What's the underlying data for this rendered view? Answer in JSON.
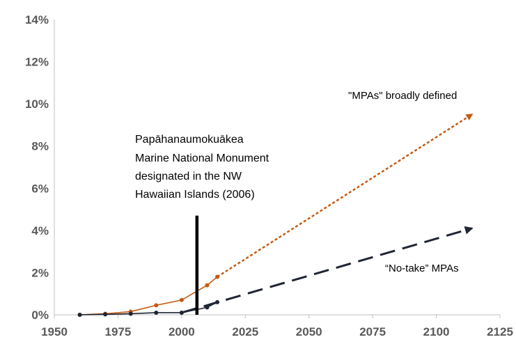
{
  "chart_data": {
    "type": "line",
    "title": "",
    "xlabel": "",
    "ylabel": "",
    "xlim": [
      1950,
      2125
    ],
    "ylim": [
      0,
      14
    ],
    "x_ticks": [
      1950,
      1975,
      2000,
      2025,
      2050,
      2075,
      2100,
      2125
    ],
    "x_tick_labels": [
      "1950",
      "1975",
      "2000",
      "2025",
      "2050",
      "2075",
      "2100",
      "2125"
    ],
    "y_ticks": [
      0,
      2,
      4,
      6,
      8,
      10,
      12,
      14
    ],
    "y_tick_labels": [
      "0%",
      "2%",
      "4%",
      "6%",
      "8%",
      "10%",
      "12%",
      "14%"
    ],
    "grid": false,
    "series": [
      {
        "name": "\"MPAs\" broadly defined",
        "color": "#C55A11",
        "observed": [
          [
            1960,
            0.0
          ],
          [
            1970,
            0.05
          ],
          [
            1980,
            0.15
          ],
          [
            1990,
            0.45
          ],
          [
            2000,
            0.7
          ],
          [
            2010,
            1.4
          ],
          [
            2014,
            1.8
          ]
        ],
        "projection": [
          [
            2014,
            1.8
          ],
          [
            2114,
            9.5
          ]
        ]
      },
      {
        "name": "“No-take” MPAs",
        "color": "#1F2533",
        "observed": [
          [
            1960,
            0.0
          ],
          [
            1970,
            0.02
          ],
          [
            1980,
            0.05
          ],
          [
            1990,
            0.1
          ],
          [
            2000,
            0.1
          ],
          [
            2010,
            0.35
          ],
          [
            2014,
            0.6
          ]
        ],
        "projection": [
          [
            2000,
            0.1
          ],
          [
            2114,
            4.1
          ]
        ]
      }
    ],
    "annotations": [
      {
        "lines": [
          "Papāhanaumokuākea",
          "Marine National Monument",
          "designated in the NW",
          "Hawaiian Islands (2006)"
        ],
        "marker_x": 2006,
        "marker_y_range": [
          0,
          4.7
        ]
      }
    ]
  }
}
